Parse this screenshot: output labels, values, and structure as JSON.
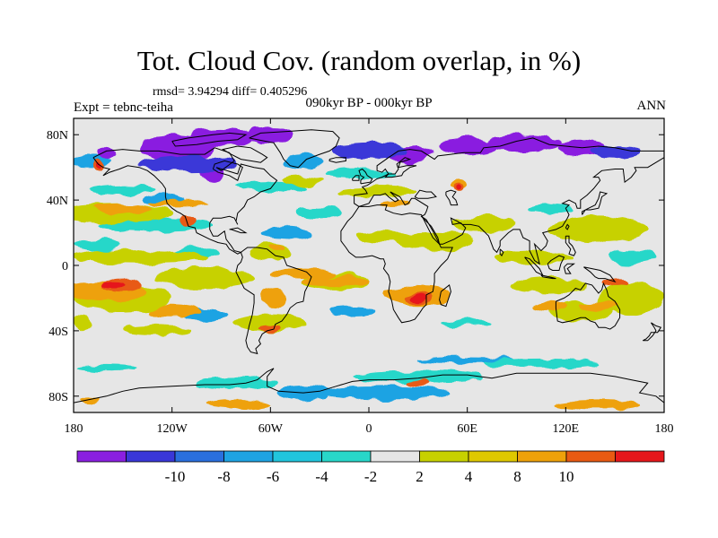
{
  "header": {
    "title": "Tot. Cloud Cov. (random overlap, in %)",
    "stats": "rmsd= 3.94294 diff= 0.405296",
    "expt": "Expt = tebnc-teiha",
    "period": "090kyr BP - 000kyr BP",
    "season": "ANN"
  },
  "map": {
    "projection": "cylindrical equidistant",
    "lon_range": [
      -180,
      180
    ],
    "lat_range": [
      -90,
      90
    ],
    "x_ticks": [
      {
        "value": -180,
        "label": "180"
      },
      {
        "value": -120,
        "label": "120W"
      },
      {
        "value": -60,
        "label": "60W"
      },
      {
        "value": 0,
        "label": "0"
      },
      {
        "value": 60,
        "label": "60E"
      },
      {
        "value": 120,
        "label": "120E"
      },
      {
        "value": 180,
        "label": "180"
      }
    ],
    "y_ticks": [
      {
        "value": 80,
        "label": "80N"
      },
      {
        "value": 40,
        "label": "40N"
      },
      {
        "value": 0,
        "label": "0"
      },
      {
        "value": -40,
        "label": "40S"
      },
      {
        "value": -80,
        "label": "80S"
      }
    ],
    "background_color": "#e6e6e6",
    "fields": [
      {
        "level": -10,
        "color": "#8a1fe0",
        "blobs": [
          [
            -118,
            72,
            22,
            8
          ],
          [
            -90,
            78,
            20,
            6
          ],
          [
            -60,
            80,
            14,
            5
          ],
          [
            -95,
            58,
            8,
            8
          ],
          [
            25,
            68,
            14,
            5
          ],
          [
            60,
            73,
            18,
            5
          ],
          [
            95,
            75,
            22,
            5
          ],
          [
            130,
            72,
            15,
            5
          ],
          [
            -160,
            68,
            6,
            3
          ]
        ]
      },
      {
        "level": -8,
        "color": "#3a37d8",
        "blobs": [
          [
            -110,
            62,
            30,
            5
          ],
          [
            0,
            70,
            22,
            5
          ],
          [
            150,
            70,
            15,
            4
          ]
        ]
      },
      {
        "level": -6,
        "color": "#1ea3e3",
        "blobs": [
          [
            -170,
            64,
            14,
            3
          ],
          [
            -40,
            64,
            12,
            4
          ],
          [
            -150,
            -16,
            20,
            4
          ],
          [
            -100,
            -30,
            14,
            4
          ],
          [
            -50,
            20,
            15,
            4
          ],
          [
            -10,
            -28,
            14,
            3
          ],
          [
            -125,
            40,
            12,
            3
          ],
          [
            10,
            -78,
            40,
            4
          ],
          [
            -40,
            -78,
            16,
            4
          ],
          [
            60,
            -58,
            30,
            2
          ]
        ]
      },
      {
        "level": -4,
        "color": "#28d7c9",
        "blobs": [
          [
            -130,
            25,
            35,
            4
          ],
          [
            -165,
            12,
            14,
            4
          ],
          [
            -80,
            -72,
            25,
            4
          ],
          [
            30,
            -68,
            40,
            4
          ],
          [
            105,
            -60,
            35,
            3
          ],
          [
            -60,
            48,
            22,
            3
          ],
          [
            -5,
            56,
            22,
            3
          ],
          [
            -150,
            46,
            20,
            3
          ],
          [
            -105,
            8,
            14,
            3
          ],
          [
            -30,
            32,
            15,
            3
          ],
          [
            160,
            5,
            15,
            4
          ],
          [
            110,
            35,
            14,
            3
          ],
          [
            -160,
            -62,
            18,
            2
          ],
          [
            60,
            -35,
            16,
            2
          ]
        ]
      },
      {
        "level": 2,
        "color": "#c7d100",
        "blobs": [
          [
            -155,
            32,
            35,
            6
          ],
          [
            -140,
            5,
            42,
            4
          ],
          [
            -150,
            -20,
            30,
            8
          ],
          [
            -100,
            -8,
            30,
            6
          ],
          [
            -130,
            -40,
            22,
            3
          ],
          [
            -60,
            -35,
            22,
            5
          ],
          [
            -60,
            8,
            14,
            5
          ],
          [
            10,
            18,
            18,
            4
          ],
          [
            40,
            15,
            25,
            6
          ],
          [
            70,
            25,
            20,
            5
          ],
          [
            140,
            22,
            30,
            8
          ],
          [
            160,
            -20,
            20,
            10
          ],
          [
            110,
            -12,
            24,
            5
          ],
          [
            100,
            5,
            24,
            4
          ],
          [
            -40,
            52,
            12,
            3
          ],
          [
            -20,
            -10,
            20,
            5
          ],
          [
            130,
            -28,
            20,
            6
          ],
          [
            -175,
            -35,
            6,
            5
          ],
          [
            5,
            45,
            25,
            3
          ]
        ]
      },
      {
        "level": 4,
        "color": "#eea10a",
        "blobs": [
          [
            -160,
            -16,
            25,
            6
          ],
          [
            -120,
            -28,
            16,
            4
          ],
          [
            -40,
            -5,
            20,
            3
          ],
          [
            -20,
            -10,
            20,
            3
          ],
          [
            30,
            -18,
            20,
            6
          ],
          [
            -58,
            -20,
            8,
            6
          ],
          [
            -55,
            10,
            5,
            2
          ],
          [
            -150,
            35,
            18,
            3
          ],
          [
            -115,
            38,
            18,
            2
          ],
          [
            15,
            38,
            10,
            2
          ],
          [
            55,
            50,
            5,
            3
          ],
          [
            110,
            -25,
            10,
            3
          ],
          [
            140,
            -25,
            12,
            3
          ],
          [
            140,
            -85,
            25,
            3
          ],
          [
            -80,
            -85,
            20,
            3
          ],
          [
            -170,
            -82,
            6,
            2
          ]
        ]
      },
      {
        "level": 8,
        "color": "#e85a12",
        "blobs": [
          [
            -150,
            -12,
            12,
            4
          ],
          [
            30,
            -20,
            8,
            3
          ],
          [
            55,
            48,
            3,
            3
          ],
          [
            -110,
            28,
            5,
            3
          ],
          [
            150,
            -10,
            8,
            2
          ],
          [
            -165,
            62,
            4,
            3
          ],
          [
            -60,
            -38,
            6,
            2
          ],
          [
            30,
            -72,
            8,
            2
          ]
        ]
      },
      {
        "level": 10,
        "color": "#e6171b",
        "blobs": [
          [
            -155,
            -12,
            7,
            2
          ],
          [
            30,
            -20,
            4,
            2
          ],
          [
            55,
            48,
            1.5,
            2
          ],
          [
            -165,
            62,
            2,
            1.5
          ]
        ]
      }
    ],
    "coast_color": "#000000"
  },
  "colorbar": {
    "colors": [
      "#8a1fe0",
      "#3a37d8",
      "#2a6fde",
      "#1ea3e3",
      "#21c5dd",
      "#28d7c9",
      "#e6e6e6",
      "#c7d100",
      "#dfc800",
      "#eea10a",
      "#e85a12",
      "#e6171b"
    ],
    "labels": [
      "-10",
      "-8",
      "-6",
      "-4",
      "-2",
      "2",
      "4",
      "8",
      "10"
    ]
  }
}
